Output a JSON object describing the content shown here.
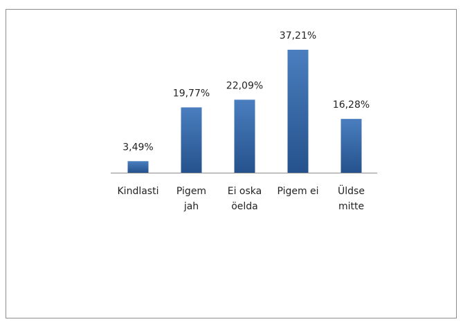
{
  "chart_data": {
    "type": "bar",
    "categories": [
      [
        "Kindlasti"
      ],
      [
        "Pigem",
        "jah"
      ],
      [
        "Ei oska",
        "öelda"
      ],
      [
        "Pigem ei"
      ],
      [
        "Üldse",
        "mitte"
      ]
    ],
    "values": [
      3.49,
      19.77,
      22.09,
      37.21,
      16.28
    ],
    "value_labels": [
      "3,49%",
      "19,77%",
      "22,09%",
      "37,21%",
      "16,28%"
    ],
    "color": "#4a7ebf"
  }
}
